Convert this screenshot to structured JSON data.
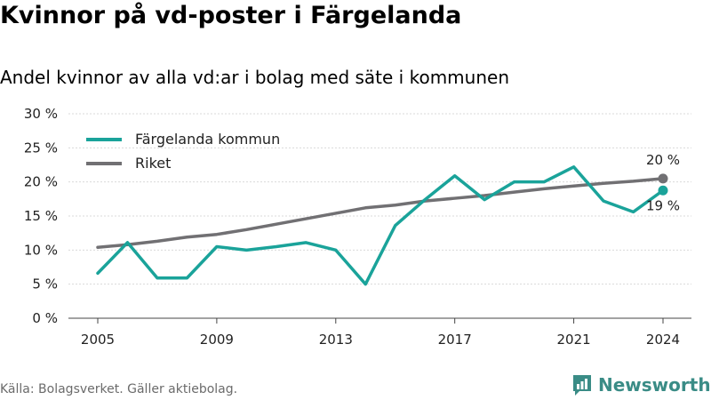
{
  "header": {
    "title": "Kvinnor på vd-poster i Färgelanda",
    "subtitle": "Andel kvinnor av alla vd:ar i bolag med säte i kommunen"
  },
  "footer": {
    "source": "Källa: Bolagsverket. Gäller aktiebolag.",
    "brand": "Newsworthy",
    "brand_color": "#3a8c86"
  },
  "chart_data": {
    "type": "line",
    "x": [
      2005,
      2006,
      2007,
      2008,
      2009,
      2010,
      2011,
      2012,
      2013,
      2014,
      2015,
      2016,
      2017,
      2018,
      2019,
      2020,
      2021,
      2022,
      2023,
      2024
    ],
    "xticks": [
      "2005",
      "2009",
      "2013",
      "2017",
      "2021",
      "2024"
    ],
    "yticks": [
      "0 %",
      "5 %",
      "10 %",
      "15 %",
      "20 %",
      "25 %",
      "30 %"
    ],
    "ylim": [
      0,
      30
    ],
    "grid": true,
    "legend_position": "top-left",
    "series": [
      {
        "name": "Färgelanda kommun",
        "color": "#1aa39a",
        "values": [
          6.6,
          11.1,
          5.9,
          5.9,
          10.5,
          10.0,
          10.5,
          11.1,
          10.0,
          5.0,
          13.6,
          17.4,
          20.9,
          17.4,
          20.0,
          20.0,
          22.2,
          17.2,
          15.6,
          18.75
        ],
        "end_label": "19 %"
      },
      {
        "name": "Riket",
        "color": "#717073",
        "values": [
          10.4,
          10.8,
          11.3,
          11.9,
          12.3,
          13.0,
          13.8,
          14.6,
          15.4,
          16.2,
          16.6,
          17.2,
          17.6,
          18.0,
          18.5,
          19.0,
          19.4,
          19.8,
          20.1,
          20.5
        ],
        "end_label": "20 %"
      }
    ]
  }
}
